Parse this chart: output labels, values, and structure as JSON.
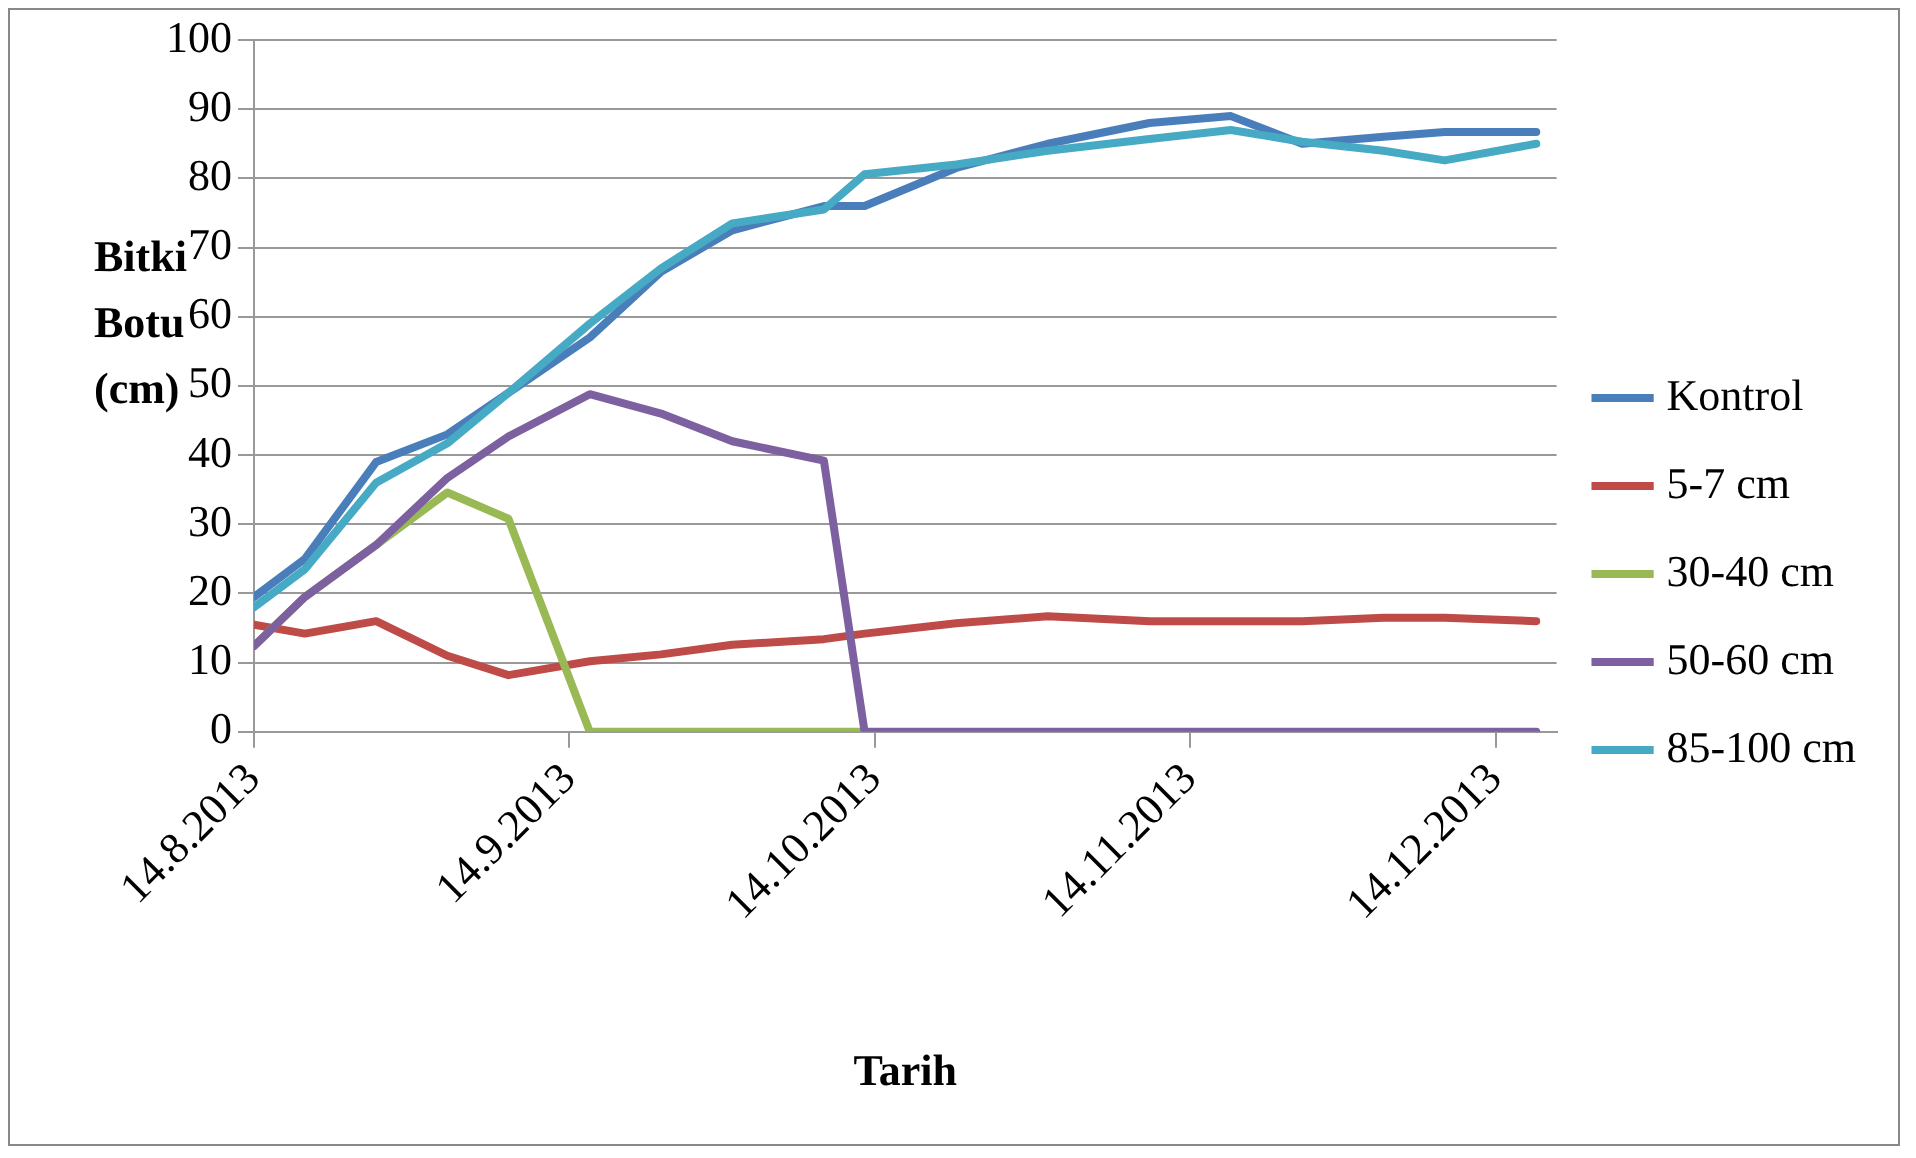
{
  "chart_data": {
    "type": "line",
    "xlabel": "Tarih",
    "ylabel": "Bitki Botu (cm)",
    "x": [
      "2013-08-14",
      "2013-08-19",
      "2013-08-26",
      "2013-09-02",
      "2013-09-08",
      "2013-09-16",
      "2013-09-23",
      "2013-09-30",
      "2013-10-09",
      "2013-10-13",
      "2013-10-22",
      "2013-10-31",
      "2013-11-10",
      "2013-11-18",
      "2013-11-25",
      "2013-12-03",
      "2013-12-09",
      "2013-12-18"
    ],
    "series": [
      {
        "name": "Kontrol",
        "color": "#4a7ebb",
        "values": [
          19.5,
          25,
          39,
          43,
          49,
          57,
          66.5,
          72.5,
          76,
          76,
          81.5,
          85,
          88,
          89,
          85,
          86,
          86.7,
          86.7
        ]
      },
      {
        "name": "5-7 cm",
        "color": "#be4b48",
        "values": [
          15.5,
          14.2,
          16,
          11,
          8.2,
          10.2,
          11.2,
          12.6,
          13.4,
          14.2,
          15.7,
          16.7,
          16,
          16,
          16,
          16.5,
          16.5,
          16
        ]
      },
      {
        "name": "30-40 cm",
        "color": "#98b954",
        "values": [
          12.4,
          19.5,
          27,
          34.6,
          30.8,
          0,
          0,
          0,
          0,
          0,
          null,
          null,
          null,
          null,
          null,
          null,
          null,
          null
        ]
      },
      {
        "name": "50-60 cm",
        "color": "#7d60a0",
        "values": [
          12.4,
          19.5,
          27,
          36.7,
          42.7,
          48.8,
          46,
          42,
          39.2,
          0,
          0,
          0,
          0,
          0,
          0,
          0,
          0,
          0
        ]
      },
      {
        "name": "85-100 cm",
        "color": "#46aac5",
        "values": [
          18,
          23.5,
          36,
          41.7,
          49,
          59,
          67,
          73.5,
          75.5,
          80.6,
          82,
          84,
          85.7,
          87,
          85.3,
          84,
          82.6,
          85
        ]
      }
    ],
    "xlim": [
      "2013-08-14",
      "2013-12-20"
    ],
    "xticks": [
      {
        "value": "2013-08-14",
        "label": "14.8.2013"
      },
      {
        "value": "2013-09-14",
        "label": "14.9.2013"
      },
      {
        "value": "2013-10-14",
        "label": "14.10.2013"
      },
      {
        "value": "2013-11-14",
        "label": "14.11.2013"
      },
      {
        "value": "2013-12-14",
        "label": "14.12.2013"
      }
    ],
    "ylim": [
      0,
      100
    ],
    "yticks": [
      0,
      10,
      20,
      30,
      40,
      50,
      60,
      70,
      80,
      90,
      100
    ],
    "grid": "y",
    "legend": "right",
    "marker": "none",
    "line_style": "solid"
  }
}
